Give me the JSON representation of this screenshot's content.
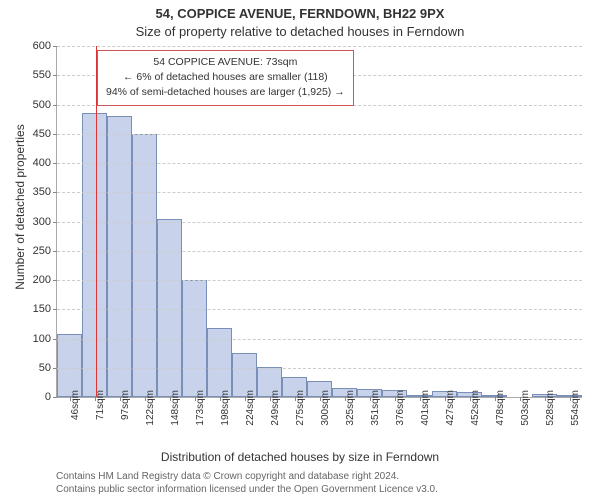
{
  "header": {
    "title": "54, COPPICE AVENUE, FERNDOWN, BH22 9PX",
    "subtitle": "Size of property relative to detached houses in Ferndown",
    "title_fontsize": 13,
    "subtitle_fontsize": 13
  },
  "chart": {
    "type": "bar",
    "ylabel": "Number of detached properties",
    "xlabel": "Distribution of detached houses by size in Ferndown",
    "label_fontsize": 12,
    "background_color": "#ffffff",
    "grid_color": "#cccccc",
    "axis_color": "#aaaaaa",
    "bar_fill": "#c8d3eb",
    "bar_border": "#7a8fb8",
    "highlight_color": "#dd3333",
    "tick_fontsize": 11,
    "xtick_fontsize": 10,
    "ylim": [
      0,
      600
    ],
    "ytick_step": 50,
    "yticks": [
      0,
      50,
      100,
      150,
      200,
      250,
      300,
      350,
      400,
      450,
      500,
      550,
      600
    ],
    "categories": [
      "46sqm",
      "71sqm",
      "97sqm",
      "122sqm",
      "148sqm",
      "173sqm",
      "198sqm",
      "224sqm",
      "249sqm",
      "275sqm",
      "300sqm",
      "325sqm",
      "351sqm",
      "376sqm",
      "401sqm",
      "427sqm",
      "452sqm",
      "478sqm",
      "503sqm",
      "528sqm",
      "554sqm"
    ],
    "values": [
      108,
      485,
      480,
      450,
      305,
      200,
      118,
      75,
      52,
      35,
      28,
      16,
      14,
      12,
      4,
      10,
      8,
      4,
      0,
      6,
      4
    ],
    "bar_width": 1.0,
    "highlight_value_sqm": 73,
    "highlight_bin_start": 46,
    "highlight_bin_step": 25.4
  },
  "callout": {
    "line1": "54 COPPICE AVENUE: 73sqm",
    "line2": "← 6% of detached houses are smaller (118)",
    "line3": "94% of semi-detached houses are larger (1,925) →",
    "border_color": "#cc5555",
    "fontsize": 10.5
  },
  "license": {
    "line1": "Contains HM Land Registry data © Crown copyright and database right 2024.",
    "line2": "Contains public sector information licensed under the Open Government Licence v3.0.",
    "fontsize": 10,
    "color": "#666666"
  }
}
